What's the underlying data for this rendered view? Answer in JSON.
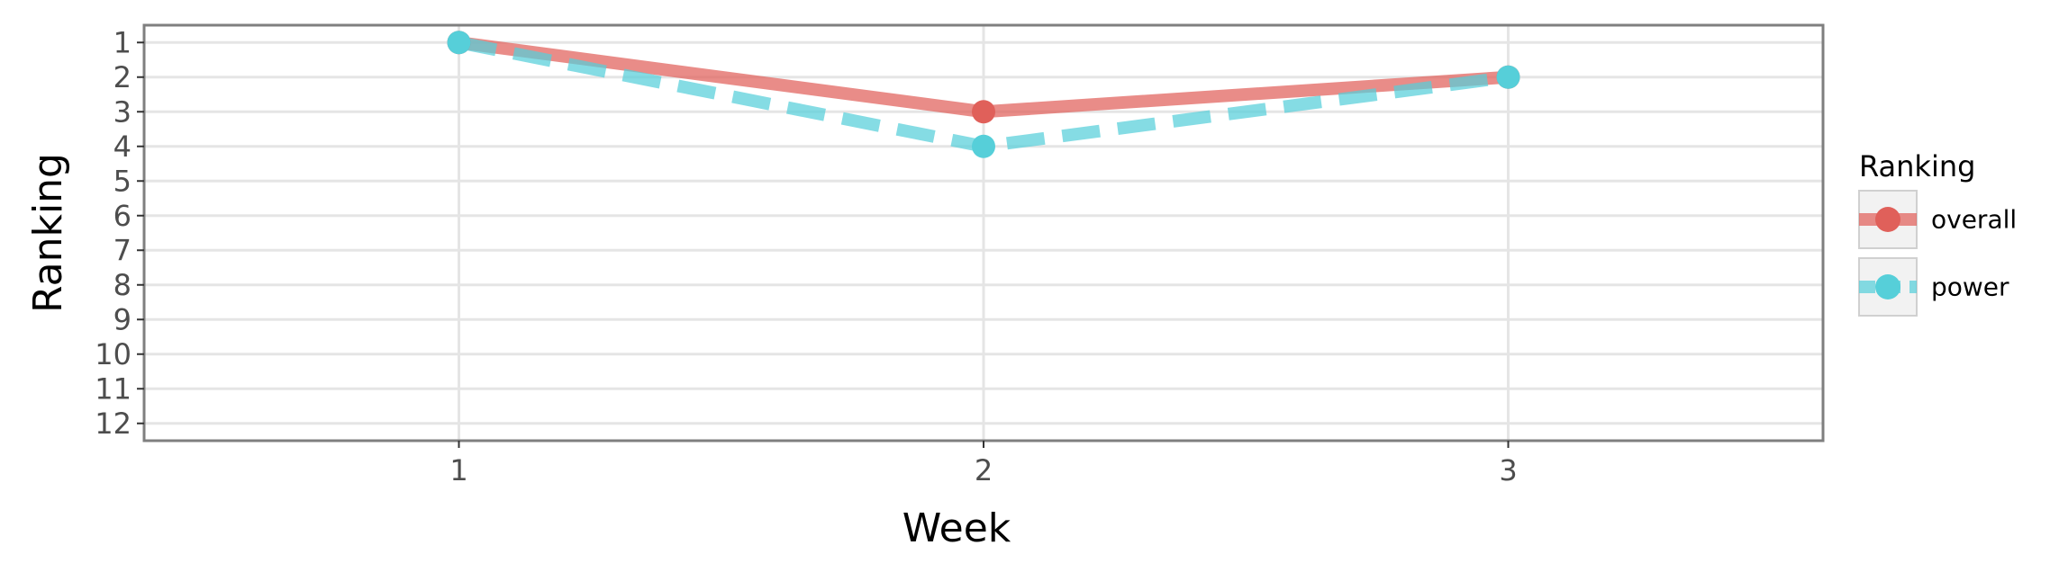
{
  "chart_data": {
    "type": "line",
    "title": "",
    "xlabel": "Week",
    "ylabel": "Ranking",
    "x": [
      1,
      2,
      3
    ],
    "x_ticks": [
      "1",
      "2",
      "3"
    ],
    "xlim": [
      0.4,
      3.6
    ],
    "y_ticks": [
      "1",
      "2",
      "3",
      "4",
      "5",
      "6",
      "7",
      "8",
      "9",
      "10",
      "11",
      "12"
    ],
    "ylim": [
      12.5,
      0.5
    ],
    "y_reversed": true,
    "grid": true,
    "legend": {
      "title": "Ranking",
      "placement": "right"
    },
    "series": [
      {
        "name": "overall",
        "values": [
          1,
          3,
          2
        ],
        "color": "#e0605a",
        "line_style": "solid"
      },
      {
        "name": "power",
        "values": [
          1,
          4,
          2
        ],
        "color": "#56cfd9",
        "line_style": "dashed"
      }
    ]
  }
}
